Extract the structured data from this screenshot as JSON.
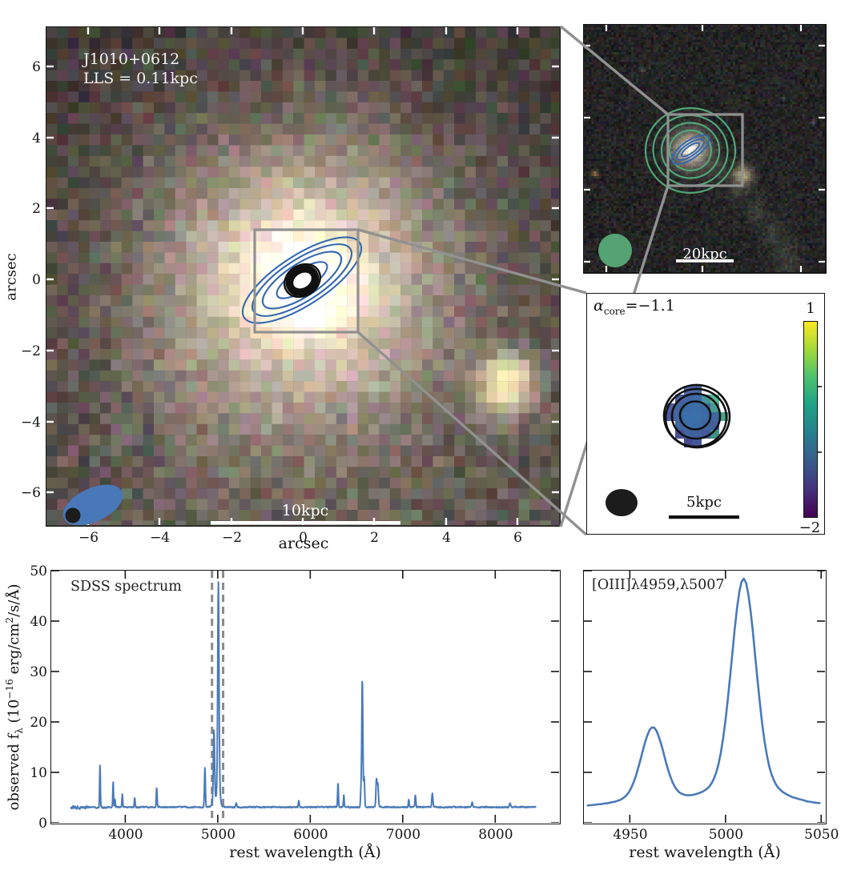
{
  "figure": {
    "image_panel": {
      "target_label": "J1010+0612",
      "lls_label": "LLS = 0.11kpc",
      "xlabel": "arcsec",
      "ylabel": "arcsec",
      "xticks": [
        -6,
        -4,
        -2,
        0,
        2,
        4,
        6
      ],
      "yticks": [
        6,
        4,
        2,
        0,
        -2,
        -4,
        -6
      ],
      "scalebar_label": "10kpc"
    },
    "widefield_panel": {
      "scalebar_label": "20kpc"
    },
    "alpha_panel": {
      "label_symbol": "α",
      "label_subscript": "core",
      "label_value": "=−1.1",
      "scalebar_label": "5kpc",
      "colorbar": {
        "top_label": "1",
        "bottom_label": "−2",
        "gradient": [
          "#440154",
          "#46327e",
          "#365c8d",
          "#277f8e",
          "#1fa187",
          "#4ac16d",
          "#a0da39",
          "#fde725"
        ]
      }
    }
  },
  "spectra": {
    "ylabel_parts": {
      "p1": "observed f",
      "sub1": "λ",
      "p2": " (10",
      "sup1": "−16",
      "p3": " erg/cm",
      "sup2": "2",
      "p4": "/s/Å)"
    },
    "xlabel_left": "rest wavelength (Å)",
    "xlabel_right": "rest wavelength (Å)",
    "label_left": "SDSS spectrum",
    "label_right": "[OIII]λ4959,λ5007"
  },
  "chart_data": [
    {
      "id": "sdss-spectrum",
      "type": "line",
      "title": "SDSS spectrum",
      "xlabel": "rest wavelength (Å)",
      "ylabel": "observed fλ (10⁻¹⁶ erg/cm²/s/Å)",
      "xlim": [
        3200,
        8690
      ],
      "ylim": [
        0,
        50
      ],
      "xticks": [
        4000,
        5000,
        6000,
        7000,
        8000
      ],
      "yticks": [
        0,
        10,
        20,
        30,
        40,
        50
      ],
      "x_start": 3415,
      "x_end": 8440,
      "continuum": 3.1,
      "cont_slope": 0,
      "marker_lines_x": [
        4938,
        5058
      ],
      "emission_lines": [
        [
          3727,
          8.3,
          4
        ],
        [
          3869,
          5.1,
          4
        ],
        [
          3889,
          1.6,
          4
        ],
        [
          3968,
          2.5,
          4
        ],
        [
          4102,
          1.9,
          4
        ],
        [
          4340,
          3.8,
          4.5
        ],
        [
          4861,
          7.8,
          5
        ],
        [
          4959,
          13.5,
          6.5
        ],
        [
          4959,
          1.8,
          16
        ],
        [
          5007,
          39.5,
          6.8
        ],
        [
          5007,
          5.2,
          16
        ],
        [
          5200,
          0.9,
          5
        ],
        [
          5876,
          1.4,
          5
        ],
        [
          6300,
          4.9,
          4.5
        ],
        [
          6363,
          2.5,
          4
        ],
        [
          6548,
          3.2,
          5
        ],
        [
          6563,
          25.5,
          6
        ],
        [
          6583,
          6.0,
          5.5
        ],
        [
          6716,
          5.5,
          6
        ],
        [
          6731,
          4.5,
          6
        ],
        [
          7065,
          1.5,
          5
        ],
        [
          7136,
          2.4,
          5
        ],
        [
          7320,
          2.8,
          6
        ],
        [
          7750,
          1.0,
          6
        ],
        [
          8160,
          0.8,
          6
        ]
      ],
      "stroke_width": 2.0,
      "seed": 77,
      "corr": 0.45,
      "step": 3.5
    },
    {
      "id": "oiii-zoom",
      "type": "line",
      "title": "[OIII]λ4959,λ5007",
      "xlabel": "rest wavelength (Å)",
      "xlim": [
        4926,
        5052
      ],
      "ylim": [
        0,
        50
      ],
      "xticks": [
        4950,
        5000,
        5050
      ],
      "yticks": [
        0,
        10,
        20,
        30,
        40,
        50
      ],
      "x_start": 4928,
      "x_end": 5050,
      "continuum": 3.3,
      "cont_slope": 0.003,
      "marker_lines_x": [],
      "emission_lines": [
        [
          4962,
          13.6,
          5.8
        ],
        [
          4962,
          1.9,
          15
        ],
        [
          5009.5,
          39.5,
          6.2
        ],
        [
          5009.5,
          5.3,
          16
        ]
      ],
      "stroke_width": 2.6,
      "seed": 9,
      "corr": 0.6,
      "step": 1.2
    }
  ],
  "alpha_map": {
    "cell": 11,
    "pixels": [
      [
        "",
        "",
        "#4f63a8",
        "#49699f",
        "",
        "",
        ""
      ],
      [
        "",
        "#4a5fa0",
        "#3f66a2",
        "#3e6ba6",
        "#47949b",
        "#55b694",
        ""
      ],
      [
        "#515fa5",
        "#40669f",
        "#3a6ca8",
        "#3a6ea9",
        "#3f68a2",
        "#459a90",
        ""
      ],
      [
        "#4b5b9d",
        "#3d68a3",
        "#3b70ac",
        "#3b70ab",
        "#3d6aa5",
        "#41659e",
        "#48a68c"
      ],
      [
        "",
        "#40659f",
        "#3c6ea9",
        "#3c6da7",
        "#3e66a0",
        "#445d9a",
        ""
      ],
      [
        "",
        "#4a4f92",
        "#3f639d",
        "#40629c",
        "#44589a",
        "#3f9387",
        ""
      ],
      [
        "",
        "",
        "#474b8e",
        "#45589a",
        "",
        "",
        ""
      ]
    ]
  },
  "colors": {
    "spectrum_blue": "#4a7ab8",
    "contour_blue": "#3468b0",
    "contour_green": "#4fa577",
    "contour_black": "#101010",
    "beam_blue": "#4878b8",
    "beam_green": "#55a273",
    "beam_black": "#1c1c1c",
    "connector_gray": "#919191",
    "dashed_gray": "#8a8a8a",
    "axis_black": "#141414",
    "scalebar_white": "#ffffff",
    "scalebar_black": "#111111"
  }
}
